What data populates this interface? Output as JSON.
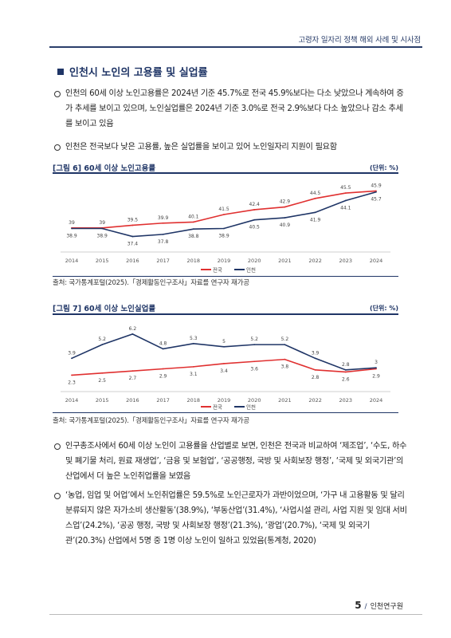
{
  "header": {
    "title": "고령자 일자리 정책 해외 사례 및 시사점"
  },
  "section": {
    "title": "인천시 노인의 고용률 및 실업률"
  },
  "paragraphs": {
    "p1": "인천의 60세 이상 노인고용률은 2024년 기준 45.7%로 전국 45.9%보다는 다소 낮았으나 계속하여 증가 추세를 보이고 있으며, 노인실업률은 2024년 기준 3.0%로 전국 2.9%보다 다소 높았으나 감소 추세를 보이고 있음",
    "p2": "인천은 전국보다 낮은 고용률, 높은 실업률을 보이고 있어 노인일자리 지원이 필요함",
    "p3": "인구총조사에서 60세 이상 노인이 고용률을 산업별로 보면, 인천은 전국과 비교하여 ‘제조업’, ‘수도, 하수 및 폐기물 처리, 원료 재생업’, ‘금융 및 보험업’, ‘공공행정, 국방 및 사회보장 행정’, ‘국제 및 외국기관’의 산업에서 더 높은 노인취업률을 보였음",
    "p4": "‘농업, 임업 및 어업’에서 노인취업률은 59.5%로 노인근로자가 과반이었으며, ‘가구 내 고용활동 및 달리 분류되지 않은 자가소비 생산활동’(38.9%), ‘부동산업’(31.4%), ‘사업시설 관리, 사업 지원 및 임대 서비스업’(24.2%), ‘공공 행정, 국방 및 사회보장 행정’(21.3%), ‘광업’(20.7%), ‘국제 및 외국기관’(20.3%) 산업에서 5명 중 1명 이상 노인이 일하고 있었음(통계청, 2020)"
  },
  "figures": [
    {
      "title": "[그림 6] 60세 이상 노인고용률",
      "unit": "(단위: %)",
      "source": "출처: 국가통계포털(2025).「경제활동인구조사」자료를 연구자 재가공"
    },
    {
      "title": "[그림 7] 60세 이상 노인실업률",
      "unit": "(단위: %)",
      "source": "출처: 국가통계포털(2025).「경제활동인구조사」자료를 연구자 재가공"
    }
  ],
  "colors": {
    "national": "#e03030",
    "incheon": "#1f3566"
  },
  "chart_data": [
    {
      "type": "line",
      "title": "[그림 6] 60세 이상 노인고용률",
      "unit": "(단위: %)",
      "x": [
        "2014",
        "2015",
        "2016",
        "2017",
        "2018",
        "2019",
        "2020",
        "2021",
        "2022",
        "2023",
        "2024"
      ],
      "series": [
        {
          "name": "전국",
          "values": [
            39,
            39,
            39.5,
            39.9,
            40.1,
            41.5,
            42.4,
            42.9,
            44.5,
            45.5,
            45.9
          ]
        },
        {
          "name": "인천",
          "values": [
            38.9,
            38.9,
            37.4,
            37.8,
            38.8,
            38.9,
            40.5,
            40.9,
            41.9,
            44.1,
            45.7
          ]
        }
      ],
      "ylim": [
        36,
        47
      ],
      "legend": "bottom",
      "grid": false
    },
    {
      "type": "line",
      "title": "[그림 7] 60세 이상 노인실업률",
      "unit": "(단위: %)",
      "x": [
        "2014",
        "2015",
        "2016",
        "2017",
        "2018",
        "2019",
        "2020",
        "2021",
        "2022",
        "2023",
        "2024"
      ],
      "series": [
        {
          "name": "전국",
          "values": [
            2.3,
            2.5,
            2.7,
            2.9,
            3.1,
            3.4,
            3.6,
            3.8,
            2.8,
            2.6,
            2.9
          ]
        },
        {
          "name": "인천",
          "values": [
            3.9,
            5.2,
            6.2,
            4.8,
            5.3,
            5,
            5.2,
            5.2,
            3.9,
            2.8,
            3
          ]
        }
      ],
      "ylim": [
        1.5,
        6.8
      ],
      "legend": "bottom",
      "grid": false
    }
  ],
  "footer": {
    "page_number": "5",
    "slash": "/",
    "org": "인천연구원"
  }
}
